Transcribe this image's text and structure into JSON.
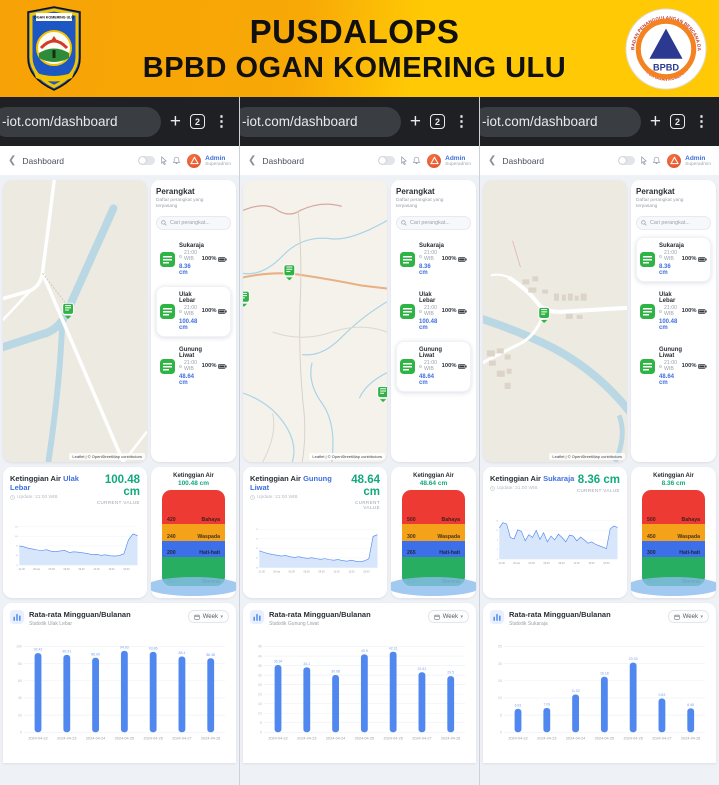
{
  "banner": {
    "title_line1": "PUSDALOPS",
    "title_line2": "BPBD OGAN KOMERING ULU",
    "left_logo_text": "OGAN KOMERING ULU",
    "right_logo_text": "BPBD",
    "right_logo_ring_top": "BADAN PENANGGULANGAN BENCANA DAERAH",
    "right_logo_ring_bottom": "KABUPATEN OGAN KOMERING ULU"
  },
  "browser": {
    "url": "-iot.com/dashboard",
    "tab_count": "2"
  },
  "appbar": {
    "title": "Dashboard",
    "user_name": "Admin",
    "user_role": "Superadmin"
  },
  "devices_panel": {
    "title": "Perangkat",
    "subtitle": "Daftar perangkat yang terpasang",
    "search_placeholder": "Cari perangkat...",
    "items": [
      {
        "name": "Sukaraja",
        "time": "21:00 WIB",
        "battery": "100%",
        "value": "8.36 cm"
      },
      {
        "name": "Ulak Lebar",
        "time": "21:00 WIB",
        "battery": "100%",
        "value": "100.48 cm"
      },
      {
        "name": "Gunung Liwat",
        "time": "21:00 WIB",
        "battery": "100%",
        "value": "48.64 cm"
      }
    ]
  },
  "map_attribution": "Leaflet | © OpenStreetMap contributors",
  "columns": [
    {
      "station": "Ulak Lebar",
      "level_title": "Ketinggian Air",
      "update_text": "Update: 21:00 WIB",
      "current_value": "100.48 cm",
      "current_value_label": "CURRENT VALUE",
      "gauge_title": "Ketinggian Air",
      "gauge_value": "100.48 cm",
      "gauge_bands": [
        {
          "threshold": "420",
          "label": "Bahaya",
          "color": "#ED3B34",
          "flex": 2.6,
          "faint": false
        },
        {
          "threshold": "240",
          "label": "Waspada",
          "color": "#F5A21B",
          "flex": 1.3,
          "faint": false
        },
        {
          "threshold": "200",
          "label": "Hati-hati",
          "color": "#3D6FE8",
          "flex": 1.25,
          "faint": false
        },
        {
          "threshold": "183",
          "label": "Normal",
          "color": "#27AE60",
          "flex": 2.2,
          "faint": true
        }
      ],
      "weekly_title": "Rata-rata Mingguan/Bulanan",
      "weekly_subtitle": "Statistik Ulak Lebar",
      "range_label": "Week",
      "highlight_device_index": 1
    },
    {
      "station": "Gunung Liwat",
      "level_title": "Ketinggian Air",
      "update_text": "Update: 21:00 WIB",
      "current_value": "48.64 cm",
      "current_value_label": "CURRENT VALUE",
      "gauge_title": "Ketinggian Air",
      "gauge_value": "48.64 cm",
      "gauge_bands": [
        {
          "threshold": "500",
          "label": "Bahaya",
          "color": "#ED3B34",
          "flex": 2.6,
          "faint": false
        },
        {
          "threshold": "300",
          "label": "Waspada",
          "color": "#F5A21B",
          "flex": 1.3,
          "faint": false
        },
        {
          "threshold": "265",
          "label": "Hati-hati",
          "color": "#3D6FE8",
          "flex": 1.25,
          "faint": false
        },
        {
          "threshold": "225",
          "label": "Normal",
          "color": "#27AE60",
          "flex": 2.2,
          "faint": true
        }
      ],
      "weekly_title": "Rata-rata Mingguan/Bulanan",
      "weekly_subtitle": "Statistik Gunung Liwat",
      "range_label": "Week",
      "highlight_device_index": 2
    },
    {
      "station": "Sukaraja",
      "level_title": "Ketinggian Air",
      "update_text": "Update: 21:00 WIB",
      "current_value": "8.36 cm",
      "current_value_label": "CURRENT VALUE",
      "gauge_title": "Ketinggian Air",
      "gauge_value": "8.36 cm",
      "gauge_bands": [
        {
          "threshold": "500",
          "label": "Bahaya",
          "color": "#ED3B34",
          "flex": 2.6,
          "faint": false
        },
        {
          "threshold": "450",
          "label": "Waspada",
          "color": "#F5A21B",
          "flex": 1.3,
          "faint": false
        },
        {
          "threshold": "300",
          "label": "Hati-hati",
          "color": "#3D6FE8",
          "flex": 1.25,
          "faint": false
        },
        {
          "threshold": "250",
          "label": "Normal",
          "color": "#27AE60",
          "flex": 2.2,
          "faint": true
        }
      ],
      "weekly_title": "Rata-rata Mingguan/Bulanan",
      "weekly_subtitle": "Statistik Sukaraja",
      "range_label": "Week",
      "highlight_device_index": 0
    }
  ],
  "chart_data": [
    {
      "type": "area",
      "title": "Ketinggian Air Ulak Lebar",
      "ylabel": "cm",
      "current": 100.48,
      "x": [
        "21:00",
        "26 Apr",
        "03:00",
        "06:00",
        "09:00",
        "12:00",
        "15:00",
        "18:00"
      ],
      "yticks": [
        76,
        84,
        92,
        100,
        108
      ],
      "values": [
        92,
        91.2,
        90.1,
        89.4,
        88.6,
        88.2,
        88.8,
        87.6,
        87.2,
        87.8,
        88.2,
        86.6,
        87.1,
        86.8,
        86.2,
        85.6,
        84.8,
        85,
        84.2,
        84.6,
        83.8,
        83.6,
        84,
        85.5,
        97,
        102,
        100.5
      ]
    },
    {
      "type": "area",
      "title": "Ketinggian Air Gunung Liwat",
      "ylabel": "cm",
      "current": 48.64,
      "x": [
        "21:00",
        "26 Apr",
        "03:00",
        "06:00",
        "09:00",
        "12:00",
        "15:00",
        "18:00"
      ],
      "yticks": [
        28,
        34,
        40,
        46,
        52
      ],
      "values": [
        38.5,
        37.6,
        36.8,
        36.2,
        35.8,
        35.2,
        35.6,
        34.8,
        34.4,
        34.8,
        34.2,
        33.8,
        34.2,
        33.6,
        33.2,
        33.6,
        33,
        32.6,
        33,
        32.4,
        32,
        32.6,
        32,
        31.6,
        32.2,
        33.5,
        47.5,
        48.6
      ]
    },
    {
      "type": "area",
      "title": "Ketinggian Air Sukaraja",
      "ylabel": "cm",
      "current": 8.36,
      "x": [
        "21:00",
        "26 Apr",
        "03:00",
        "06:00",
        "09:00",
        "12:00",
        "15:00",
        "18:00"
      ],
      "yticks": [
        0,
        4,
        8,
        12,
        16
      ],
      "values": [
        13,
        15.2,
        14.6,
        9,
        8.4,
        12.2,
        11.6,
        7.6,
        10.2,
        9,
        12,
        8.2,
        11,
        7.2,
        9.6,
        8,
        10.4,
        9,
        7.2,
        10,
        9.6,
        7.6,
        9.2,
        8,
        6.6,
        7.2,
        6.2,
        5.6,
        5,
        4.4,
        12.6,
        13.8,
        13.2
      ]
    },
    {
      "type": "bar",
      "title": "Rata-rata Mingguan/Bulanan — Statistik Ulak Lebar",
      "categories": [
        "2024-04-22",
        "2024-04-23",
        "2024-04-24",
        "2024-04-25",
        "2024-04-26",
        "2024-04-27",
        "2024-04-28"
      ],
      "values": [
        92.42,
        90.31,
        86.99,
        94.93,
        93.86,
        88.4,
        86.38
      ],
      "yticks": [
        0,
        20,
        40,
        60,
        80,
        100
      ],
      "ylim": [
        0,
        100
      ]
    },
    {
      "type": "bar",
      "title": "Rata-rata Mingguan/Bulanan — Statistik Gunung Liwat",
      "categories": [
        "2024-04-22",
        "2024-04-23",
        "2024-04-24",
        "2024-04-25",
        "2024-04-26",
        "2024-04-27",
        "2024-04-28"
      ],
      "values": [
        35.34,
        34.1,
        30.08,
        40.9,
        42.31,
        31.51,
        29.5
      ],
      "yticks": [
        0,
        5,
        10,
        15,
        20,
        25,
        30,
        35,
        40,
        45
      ],
      "ylim": [
        0,
        45
      ]
    },
    {
      "type": "bar",
      "title": "Rata-rata Mingguan/Bulanan — Statistik Sukaraja",
      "categories": [
        "2024-04-22",
        "2024-04-23",
        "2024-04-24",
        "2024-04-25",
        "2024-04-26",
        "2024-04-27",
        "2024-04-28"
      ],
      "values": [
        6.81,
        7.09,
        11.02,
        16.18,
        20.33,
        9.83,
        6.96
      ],
      "yticks": [
        0,
        5,
        10,
        15,
        20,
        25
      ],
      "ylim": [
        0,
        25
      ]
    }
  ],
  "colors": {
    "accent_blue": "#4C85F0",
    "value_green": "#12a97d",
    "bar_blue": "#5188F0",
    "band_danger": "#ED3B34",
    "band_warn": "#F5A21B",
    "band_caution": "#3D6FE8",
    "band_normal": "#27AE60"
  }
}
